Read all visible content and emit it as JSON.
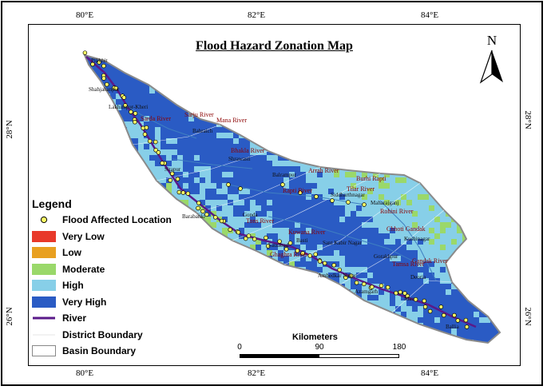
{
  "title": "Flood Hazard Zonation Map",
  "north_label": "N",
  "ticks": {
    "top": [
      "80°E",
      "82°E",
      "84°E"
    ],
    "bottom": [
      "80°E",
      "82°E",
      "84°E"
    ],
    "left": [
      "28°N",
      "26°N"
    ],
    "right": [
      "28°N",
      "26°N"
    ]
  },
  "legend": {
    "title": "Legend",
    "items": [
      {
        "label": "Flood Affected Location",
        "symbol": "point",
        "color": "#ffff66"
      },
      {
        "label": "Very Low",
        "symbol": "fill",
        "color": "#e8392a"
      },
      {
        "label": "Low",
        "symbol": "fill",
        "color": "#e8a020"
      },
      {
        "label": "Moderate",
        "symbol": "fill",
        "color": "#9ad86a"
      },
      {
        "label": "High",
        "symbol": "fill",
        "color": "#87cfe8"
      },
      {
        "label": "Very High",
        "symbol": "fill",
        "color": "#2a5bc4"
      },
      {
        "label": "River",
        "symbol": "line",
        "color": "#5a1a8a"
      },
      {
        "label": "District Boundary",
        "symbol": "thin-line",
        "color": "#ffffff"
      },
      {
        "label": "Basin Boundary",
        "symbol": "outline",
        "color": "#888888"
      }
    ]
  },
  "scale": {
    "title": "Kilometers",
    "labels": [
      "0",
      "90",
      "180"
    ]
  },
  "places": [
    "Pilibhit",
    "Shahjahanpur",
    "Lakhimpur-Kheri",
    "Sitapur",
    "Bahraich",
    "Shrawasti",
    "Barabanki",
    "Gonda",
    "Balrampur",
    "Siddharthnagar",
    "Maharajganj",
    "Kushinagar",
    "Basti",
    "Sant Kabir Nagar",
    "Faizabad",
    "Ambedkar Nagar",
    "Gorakhpur",
    "Azamgarh",
    "Deoria",
    "Mau",
    "Ballia"
  ],
  "rivers": [
    "Sarda River",
    "Sarju River",
    "Mana River",
    "Bhakla River",
    "Arrah River",
    "Burhi Rapti",
    "Rapti River",
    "Tilar River",
    "Rohini River",
    "Kuwana River",
    "Tons River",
    "Ghaghra River",
    "Gandak River",
    "Chhoti Gandak",
    "Tamsa River"
  ],
  "colors": {
    "very_low": "#e8392a",
    "low": "#e8a020",
    "moderate": "#9ad86a",
    "high": "#87cfe8",
    "very_high": "#2a5bc4",
    "river": "#5a1a8a",
    "point": "#ffff66"
  }
}
